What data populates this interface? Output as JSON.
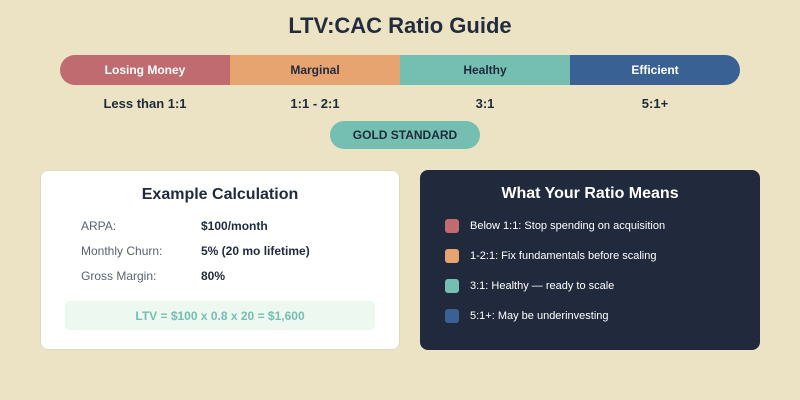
{
  "title": "LTV:CAC Ratio Guide",
  "scale": [
    {
      "label": "Losing Money",
      "range": "Less than 1:1",
      "color": "#c06b6f"
    },
    {
      "label": "Marginal",
      "range": "1:1 - 2:1",
      "color": "#e8a470"
    },
    {
      "label": "Healthy",
      "range": "3:1",
      "color": "#74bfb1"
    },
    {
      "label": "Efficient",
      "range": "5:1+",
      "color": "#3a6194"
    }
  ],
  "gold_badge": "GOLD STANDARD",
  "example": {
    "title": "Example Calculation",
    "rows": [
      {
        "label": "ARPA:",
        "value": "$100/month"
      },
      {
        "label": "Monthly Churn:",
        "value": "5% (20 mo lifetime)"
      },
      {
        "label": "Gross Margin:",
        "value": "80%"
      }
    ],
    "formula": "LTV = $100 x 0.8 x 20 = $1,600"
  },
  "meanings": {
    "title": "What Your Ratio Means",
    "items": [
      {
        "text": "Below 1:1: Stop spending on acquisition",
        "color": "#c06b6f"
      },
      {
        "text": "1-2:1: Fix fundamentals before scaling",
        "color": "#e8a470"
      },
      {
        "text": "3:1: Healthy — ready to scale",
        "color": "#74bfb1"
      },
      {
        "text": "5:1+: May be underinvesting",
        "color": "#3a6194"
      }
    ]
  },
  "colors": {
    "background": "#ebe3c4",
    "dark_card": "#202a3c",
    "accent_teal": "#74bfb1"
  }
}
